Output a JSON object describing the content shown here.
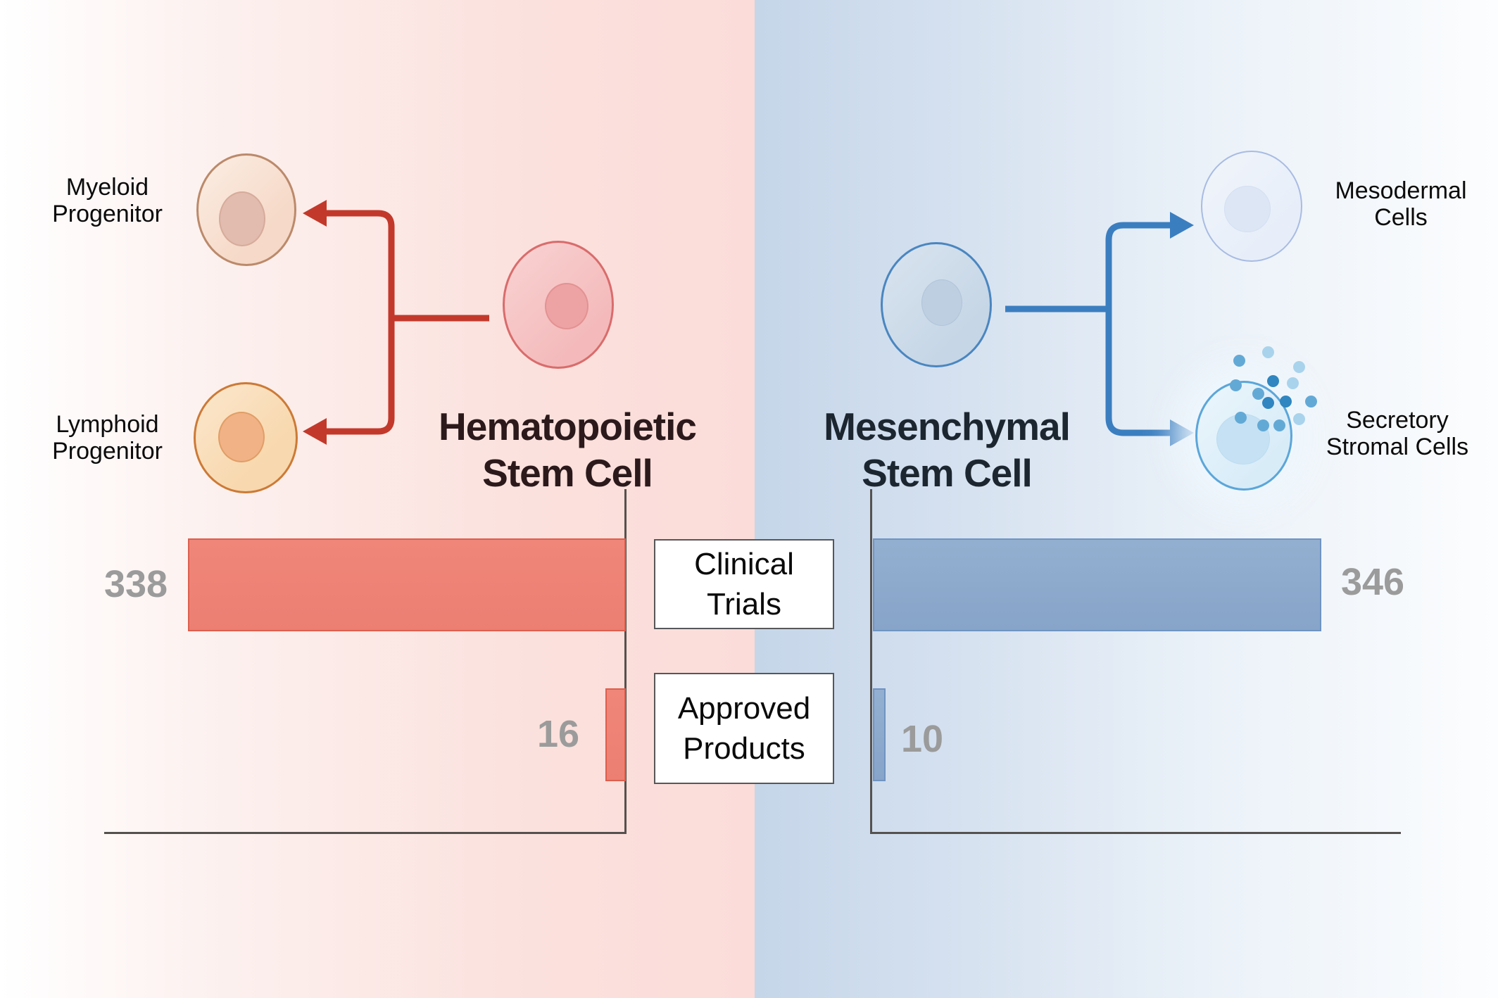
{
  "figure_title": "Hematopoietic vs Mesenchymal Stem Cell comparison",
  "left": {
    "title_lines": [
      "Hematopoietic",
      "Stem Cell"
    ],
    "title_color": "#2b191b",
    "accent_color": "#c2392b",
    "bar_color": "#ee8376",
    "myeloid_label_lines": [
      "Myeloid",
      "Progenitor"
    ],
    "lymphoid_label_lines": [
      "Lymphoid",
      "Progenitor"
    ],
    "clinical_trials": "338",
    "approved_products": "16"
  },
  "right": {
    "title_lines": [
      "Mesenchymal",
      "Stem Cell"
    ],
    "title_color": "#1c2630",
    "accent_color": "#3b7ec0",
    "bar_color": "#8ca9cd",
    "mesodermal_label_lines": [
      "Mesodermal",
      "Cells"
    ],
    "secretory_label_lines": [
      "Secretory",
      "Stromal Cells"
    ],
    "clinical_trials": "346",
    "approved_products": "10"
  },
  "center_labels": {
    "clinical_lines": [
      "Clinical",
      "Trials"
    ],
    "approved_lines": [
      "Approved",
      "Products"
    ]
  },
  "value_label_color": "#9b9b9b",
  "chart_data": [
    {
      "type": "bar",
      "orientation": "horizontal",
      "group": "Hematopoietic Stem Cell",
      "categories": [
        "Clinical Trials",
        "Approved Products"
      ],
      "values": [
        338,
        16
      ],
      "bar_color": "#ee8376",
      "bars_grow": "leftward from shared right axis",
      "legend_position": "none",
      "grid": false
    },
    {
      "type": "bar",
      "orientation": "horizontal",
      "group": "Mesenchymal Stem Cell",
      "categories": [
        "Clinical Trials",
        "Approved Products"
      ],
      "values": [
        346,
        10
      ],
      "bar_color": "#8ca9cd",
      "bars_grow": "rightward from shared left axis",
      "legend_position": "none",
      "grid": false
    }
  ]
}
